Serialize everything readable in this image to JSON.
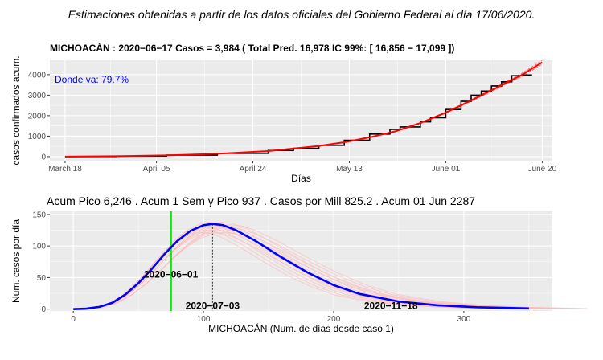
{
  "header": {
    "text": "Estimaciones obtenidas a partir de los datos oficiales del Gobierno Federal al día 17/06/2020."
  },
  "colors": {
    "panel_bg": "#ebebeb",
    "grid": "#ffffff",
    "observed": "#000000",
    "fit": "#ff0000",
    "fit_band": "#ff6666",
    "pico": "#0000ff",
    "sims": "#ffb6b6",
    "vline_today": "#00ee00",
    "annotation": "#0000ff"
  },
  "chart_data": [
    {
      "type": "line",
      "title": "MICHOACÁN : 2020−06−17 Casos =  3,984 ( Total Pred. 16,978  IC 99%: [ 16,856 − 17,099 ])",
      "xlabel": "Días",
      "ylabel": "casos confirmados acum.",
      "annotation": "Donde va: 79.7%",
      "x_tick_labels": [
        "March 18",
        "April 05",
        "April 24",
        "May 13",
        "June 01",
        "June 20"
      ],
      "x_tick_days": [
        0,
        18,
        37,
        56,
        75,
        94
      ],
      "y_ticks": [
        0,
        1000,
        2000,
        3000,
        4000
      ],
      "xlim": [
        -3,
        96
      ],
      "ylim": [
        -200,
        4700
      ],
      "x_unit": "days since March 18",
      "series": [
        {
          "style": "step",
          "x": [
            0,
            10,
            20,
            30,
            40,
            45,
            50,
            55,
            60,
            64,
            66,
            70,
            72,
            75,
            78,
            80,
            82,
            84,
            86,
            88,
            90,
            92
          ],
          "values": [
            2,
            25,
            70,
            160,
            300,
            400,
            550,
            800,
            1100,
            1330,
            1450,
            1700,
            1900,
            2300,
            2700,
            3000,
            3200,
            3450,
            3650,
            3950,
            3984,
            3984
          ]
        },
        {
          "style": "fit",
          "x": [
            0,
            10,
            20,
            30,
            40,
            50,
            55,
            60,
            65,
            70,
            75,
            80,
            85,
            90,
            94
          ],
          "values": [
            0,
            20,
            60,
            140,
            270,
            520,
            700,
            940,
            1230,
            1640,
            2150,
            2740,
            3360,
            3990,
            4600
          ]
        }
      ]
    },
    {
      "type": "line",
      "title": "Acum Pico 6,246 . Acum 1 Sem y Pico 937 . Casos por Mill 825.2 .  Acum 01 Jun  2287",
      "xlabel": "MICHOACÁN  (Num. de días desde caso 1)",
      "ylabel": "Num. casos por día",
      "x_ticks": [
        0,
        100,
        200,
        300
      ],
      "y_ticks": [
        0,
        50,
        100,
        150
      ],
      "xlim": [
        -18,
        368
      ],
      "ylim": [
        -3,
        155
      ],
      "vline_green_x": 75,
      "vline_dotted_x": 107,
      "annotations": [
        {
          "text": "2020−06−01",
          "x": 75,
          "y": 55
        },
        {
          "text": "2020−07−03",
          "x": 107,
          "y": 0
        },
        {
          "text": "2020−11−18",
          "x": 244,
          "y": 0
        }
      ],
      "series": [
        {
          "style": "pico",
          "x": [
            0,
            10,
            20,
            30,
            40,
            50,
            60,
            70,
            80,
            90,
            100,
            107,
            115,
            125,
            140,
            160,
            180,
            200,
            220,
            250,
            280,
            310,
            350
          ],
          "values": [
            0,
            0.8,
            3.5,
            10,
            23,
            41,
            63,
            87,
            108,
            124,
            133,
            135,
            133,
            125,
            108,
            82,
            58,
            38,
            24,
            12,
            6,
            3,
            1
          ]
        }
      ]
    }
  ]
}
